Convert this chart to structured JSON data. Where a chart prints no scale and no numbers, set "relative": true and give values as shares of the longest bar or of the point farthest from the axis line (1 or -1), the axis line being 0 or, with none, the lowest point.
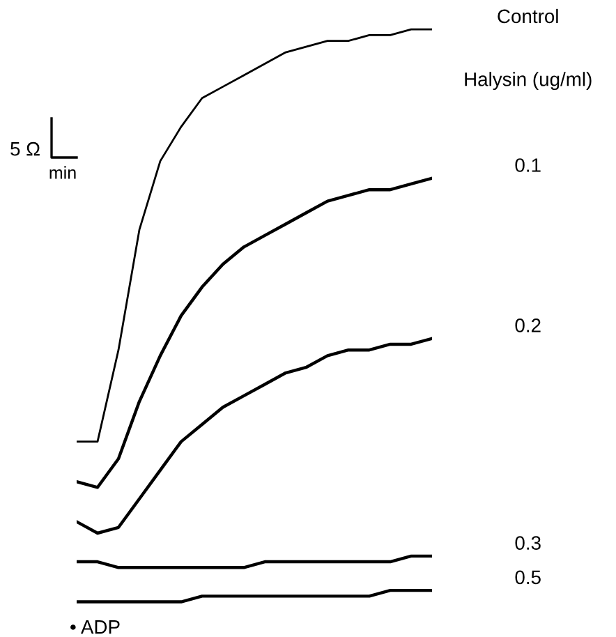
{
  "chart_data": {
    "type": "line",
    "relative": true,
    "legend_title": "Halysin (ug/ml)",
    "annotations": [
      "5 Ω",
      "min",
      "• ADP"
    ],
    "categories": [
      null,
      null,
      null,
      null,
      null,
      null,
      null,
      null,
      null,
      null,
      null,
      null,
      null,
      null,
      null,
      null,
      null,
      null
    ],
    "series": [
      {
        "name": "Control",
        "color": "#000000",
        "values": [
          0.28,
          0.28,
          0.44,
          0.65,
          0.77,
          0.83,
          0.88,
          0.9,
          0.92,
          0.94,
          0.96,
          0.97,
          0.98,
          0.98,
          0.99,
          0.99,
          1.0,
          1.0
        ]
      },
      {
        "name": "0.1",
        "color": "#000000",
        "values": [
          0.21,
          0.2,
          0.25,
          0.35,
          0.43,
          0.5,
          0.55,
          0.59,
          0.62,
          0.64,
          0.66,
          0.68,
          0.7,
          0.71,
          0.72,
          0.72,
          0.73,
          0.74
        ]
      },
      {
        "name": "0.2",
        "color": "#000000",
        "values": [
          0.14,
          0.12,
          0.13,
          0.18,
          0.23,
          0.28,
          0.31,
          0.34,
          0.36,
          0.38,
          0.4,
          0.41,
          0.43,
          0.44,
          0.44,
          0.45,
          0.45,
          0.46
        ]
      },
      {
        "name": "0.3",
        "color": "#000000",
        "values": [
          0.07,
          0.07,
          0.06,
          0.06,
          0.06,
          0.06,
          0.06,
          0.06,
          0.06,
          0.07,
          0.07,
          0.07,
          0.07,
          0.07,
          0.07,
          0.07,
          0.08,
          0.08
        ]
      },
      {
        "name": "0.5",
        "color": "#000000",
        "values": [
          0,
          0,
          0,
          0,
          0,
          0,
          0.01,
          0.01,
          0.01,
          0.01,
          0.01,
          0.01,
          0.01,
          0.01,
          0.01,
          0.02,
          0.02,
          0.02
        ]
      }
    ]
  }
}
